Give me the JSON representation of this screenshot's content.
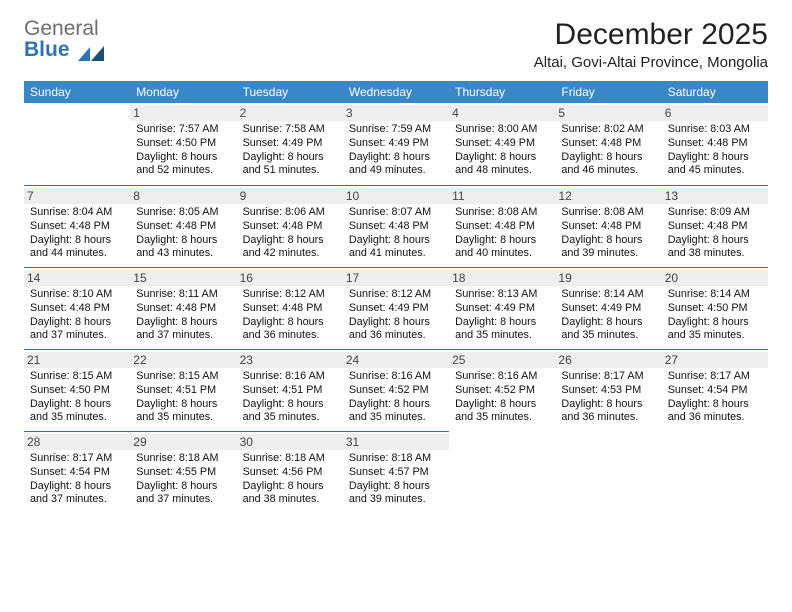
{
  "logo": {
    "gray": "General",
    "blue": "Blue"
  },
  "title": "December 2025",
  "subtitle": "Altai, Govi-Altai Province, Mongolia",
  "header_bg": "#3a87c8",
  "rule_color": "#3a6ea5",
  "daynum_bg": "#eeeeee",
  "weekdays": [
    "Sunday",
    "Monday",
    "Tuesday",
    "Wednesday",
    "Thursday",
    "Friday",
    "Saturday"
  ],
  "weeks": [
    [
      null,
      {
        "n": "1",
        "sr": "Sunrise: 7:57 AM",
        "ss": "Sunset: 4:50 PM",
        "d1": "Daylight: 8 hours",
        "d2": "and 52 minutes."
      },
      {
        "n": "2",
        "sr": "Sunrise: 7:58 AM",
        "ss": "Sunset: 4:49 PM",
        "d1": "Daylight: 8 hours",
        "d2": "and 51 minutes."
      },
      {
        "n": "3",
        "sr": "Sunrise: 7:59 AM",
        "ss": "Sunset: 4:49 PM",
        "d1": "Daylight: 8 hours",
        "d2": "and 49 minutes."
      },
      {
        "n": "4",
        "sr": "Sunrise: 8:00 AM",
        "ss": "Sunset: 4:49 PM",
        "d1": "Daylight: 8 hours",
        "d2": "and 48 minutes."
      },
      {
        "n": "5",
        "sr": "Sunrise: 8:02 AM",
        "ss": "Sunset: 4:48 PM",
        "d1": "Daylight: 8 hours",
        "d2": "and 46 minutes."
      },
      {
        "n": "6",
        "sr": "Sunrise: 8:03 AM",
        "ss": "Sunset: 4:48 PM",
        "d1": "Daylight: 8 hours",
        "d2": "and 45 minutes."
      }
    ],
    [
      {
        "n": "7",
        "sr": "Sunrise: 8:04 AM",
        "ss": "Sunset: 4:48 PM",
        "d1": "Daylight: 8 hours",
        "d2": "and 44 minutes."
      },
      {
        "n": "8",
        "sr": "Sunrise: 8:05 AM",
        "ss": "Sunset: 4:48 PM",
        "d1": "Daylight: 8 hours",
        "d2": "and 43 minutes."
      },
      {
        "n": "9",
        "sr": "Sunrise: 8:06 AM",
        "ss": "Sunset: 4:48 PM",
        "d1": "Daylight: 8 hours",
        "d2": "and 42 minutes."
      },
      {
        "n": "10",
        "sr": "Sunrise: 8:07 AM",
        "ss": "Sunset: 4:48 PM",
        "d1": "Daylight: 8 hours",
        "d2": "and 41 minutes."
      },
      {
        "n": "11",
        "sr": "Sunrise: 8:08 AM",
        "ss": "Sunset: 4:48 PM",
        "d1": "Daylight: 8 hours",
        "d2": "and 40 minutes."
      },
      {
        "n": "12",
        "sr": "Sunrise: 8:08 AM",
        "ss": "Sunset: 4:48 PM",
        "d1": "Daylight: 8 hours",
        "d2": "and 39 minutes."
      },
      {
        "n": "13",
        "sr": "Sunrise: 8:09 AM",
        "ss": "Sunset: 4:48 PM",
        "d1": "Daylight: 8 hours",
        "d2": "and 38 minutes."
      }
    ],
    [
      {
        "n": "14",
        "sr": "Sunrise: 8:10 AM",
        "ss": "Sunset: 4:48 PM",
        "d1": "Daylight: 8 hours",
        "d2": "and 37 minutes."
      },
      {
        "n": "15",
        "sr": "Sunrise: 8:11 AM",
        "ss": "Sunset: 4:48 PM",
        "d1": "Daylight: 8 hours",
        "d2": "and 37 minutes."
      },
      {
        "n": "16",
        "sr": "Sunrise: 8:12 AM",
        "ss": "Sunset: 4:48 PM",
        "d1": "Daylight: 8 hours",
        "d2": "and 36 minutes."
      },
      {
        "n": "17",
        "sr": "Sunrise: 8:12 AM",
        "ss": "Sunset: 4:49 PM",
        "d1": "Daylight: 8 hours",
        "d2": "and 36 minutes."
      },
      {
        "n": "18",
        "sr": "Sunrise: 8:13 AM",
        "ss": "Sunset: 4:49 PM",
        "d1": "Daylight: 8 hours",
        "d2": "and 35 minutes."
      },
      {
        "n": "19",
        "sr": "Sunrise: 8:14 AM",
        "ss": "Sunset: 4:49 PM",
        "d1": "Daylight: 8 hours",
        "d2": "and 35 minutes."
      },
      {
        "n": "20",
        "sr": "Sunrise: 8:14 AM",
        "ss": "Sunset: 4:50 PM",
        "d1": "Daylight: 8 hours",
        "d2": "and 35 minutes."
      }
    ],
    [
      {
        "n": "21",
        "sr": "Sunrise: 8:15 AM",
        "ss": "Sunset: 4:50 PM",
        "d1": "Daylight: 8 hours",
        "d2": "and 35 minutes."
      },
      {
        "n": "22",
        "sr": "Sunrise: 8:15 AM",
        "ss": "Sunset: 4:51 PM",
        "d1": "Daylight: 8 hours",
        "d2": "and 35 minutes."
      },
      {
        "n": "23",
        "sr": "Sunrise: 8:16 AM",
        "ss": "Sunset: 4:51 PM",
        "d1": "Daylight: 8 hours",
        "d2": "and 35 minutes."
      },
      {
        "n": "24",
        "sr": "Sunrise: 8:16 AM",
        "ss": "Sunset: 4:52 PM",
        "d1": "Daylight: 8 hours",
        "d2": "and 35 minutes."
      },
      {
        "n": "25",
        "sr": "Sunrise: 8:16 AM",
        "ss": "Sunset: 4:52 PM",
        "d1": "Daylight: 8 hours",
        "d2": "and 35 minutes."
      },
      {
        "n": "26",
        "sr": "Sunrise: 8:17 AM",
        "ss": "Sunset: 4:53 PM",
        "d1": "Daylight: 8 hours",
        "d2": "and 36 minutes."
      },
      {
        "n": "27",
        "sr": "Sunrise: 8:17 AM",
        "ss": "Sunset: 4:54 PM",
        "d1": "Daylight: 8 hours",
        "d2": "and 36 minutes."
      }
    ],
    [
      {
        "n": "28",
        "sr": "Sunrise: 8:17 AM",
        "ss": "Sunset: 4:54 PM",
        "d1": "Daylight: 8 hours",
        "d2": "and 37 minutes."
      },
      {
        "n": "29",
        "sr": "Sunrise: 8:18 AM",
        "ss": "Sunset: 4:55 PM",
        "d1": "Daylight: 8 hours",
        "d2": "and 37 minutes."
      },
      {
        "n": "30",
        "sr": "Sunrise: 8:18 AM",
        "ss": "Sunset: 4:56 PM",
        "d1": "Daylight: 8 hours",
        "d2": "and 38 minutes."
      },
      {
        "n": "31",
        "sr": "Sunrise: 8:18 AM",
        "ss": "Sunset: 4:57 PM",
        "d1": "Daylight: 8 hours",
        "d2": "and 39 minutes."
      },
      null,
      null,
      null
    ]
  ]
}
